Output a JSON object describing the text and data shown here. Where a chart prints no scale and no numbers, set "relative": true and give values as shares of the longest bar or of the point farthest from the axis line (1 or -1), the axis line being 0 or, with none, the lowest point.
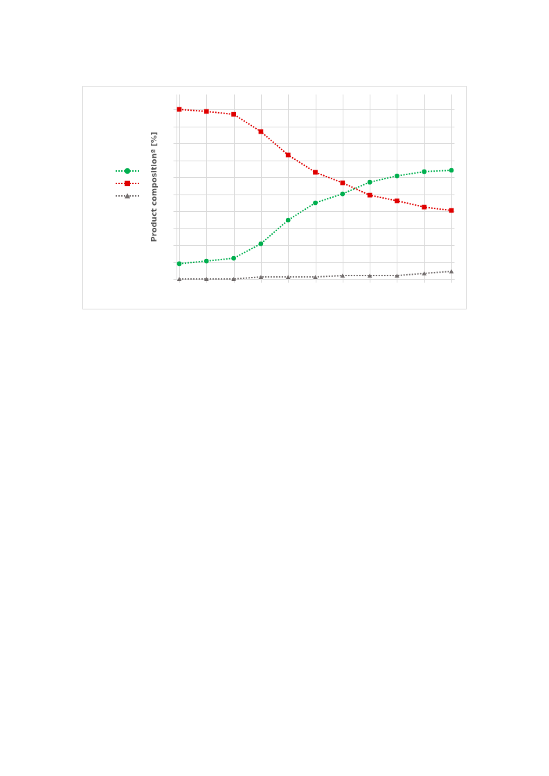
{
  "chart_data": {
    "type": "line",
    "relative": true,
    "ylabel": "Product compositionª [%]",
    "categories": [
      null,
      null,
      null,
      null,
      null,
      null,
      null,
      null,
      null,
      null,
      null
    ],
    "grid": true,
    "line_style": "dotted",
    "series": [
      {
        "color": "#00b050",
        "marker": "circle",
        "values": [
          0.09,
          0.106,
          0.122,
          0.208,
          0.347,
          0.449,
          0.502,
          0.571,
          0.608,
          0.633,
          0.641
        ]
      },
      {
        "color": "#e00000",
        "marker": "square",
        "values": [
          1,
          0.988,
          0.971,
          0.869,
          0.731,
          0.629,
          0.567,
          0.494,
          0.461,
          0.424,
          0.404
        ]
      },
      {
        "color": "#767171",
        "marker": "triangle",
        "values": [
          0,
          0,
          0,
          0.012,
          0.012,
          0.012,
          0.02,
          0.02,
          0.02,
          0.033,
          0.045
        ]
      }
    ]
  }
}
